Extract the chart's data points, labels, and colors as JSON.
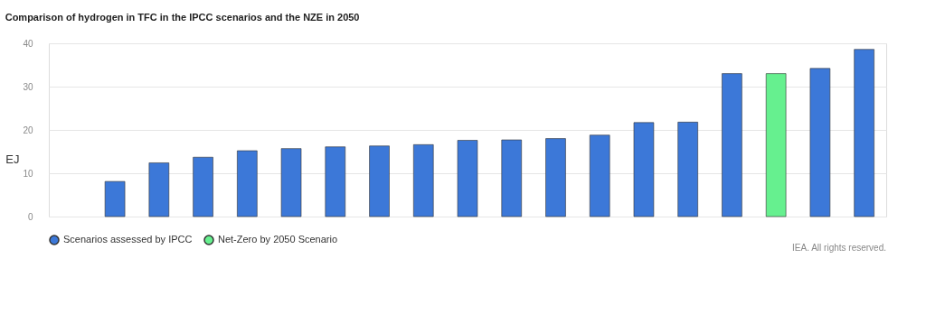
{
  "chart_data": {
    "type": "bar",
    "title": "Comparison of hydrogen in TFC in the IPCC scenarios and the NZE in 2050",
    "ylabel": "EJ",
    "categories": [
      null,
      null,
      null,
      null,
      null,
      null,
      null,
      null,
      null,
      null,
      null,
      null,
      null,
      null,
      null,
      null,
      null,
      null,
      null
    ],
    "series": [
      {
        "name": "Scenarios assessed by IPCC",
        "color": "#3c78d8",
        "values": [
          null,
          8.1,
          12.4,
          13.7,
          15.2,
          15.7,
          16.1,
          16.3,
          16.6,
          17.6,
          17.7,
          18.0,
          18.8,
          21.7,
          21.8,
          33.0,
          null,
          34.2,
          38.6
        ]
      },
      {
        "name": "Net-Zero by 2050 Scenario",
        "color": "#66f08f",
        "values": [
          null,
          null,
          null,
          null,
          null,
          null,
          null,
          null,
          null,
          null,
          null,
          null,
          null,
          null,
          null,
          null,
          33.0,
          null,
          null
        ]
      }
    ],
    "ylim": [
      0,
      40
    ],
    "yticks": [
      0,
      10,
      20,
      30,
      40
    ],
    "grid": "y",
    "legend": "bottom",
    "annotations": [
      "IEA. All rights reserved."
    ]
  }
}
